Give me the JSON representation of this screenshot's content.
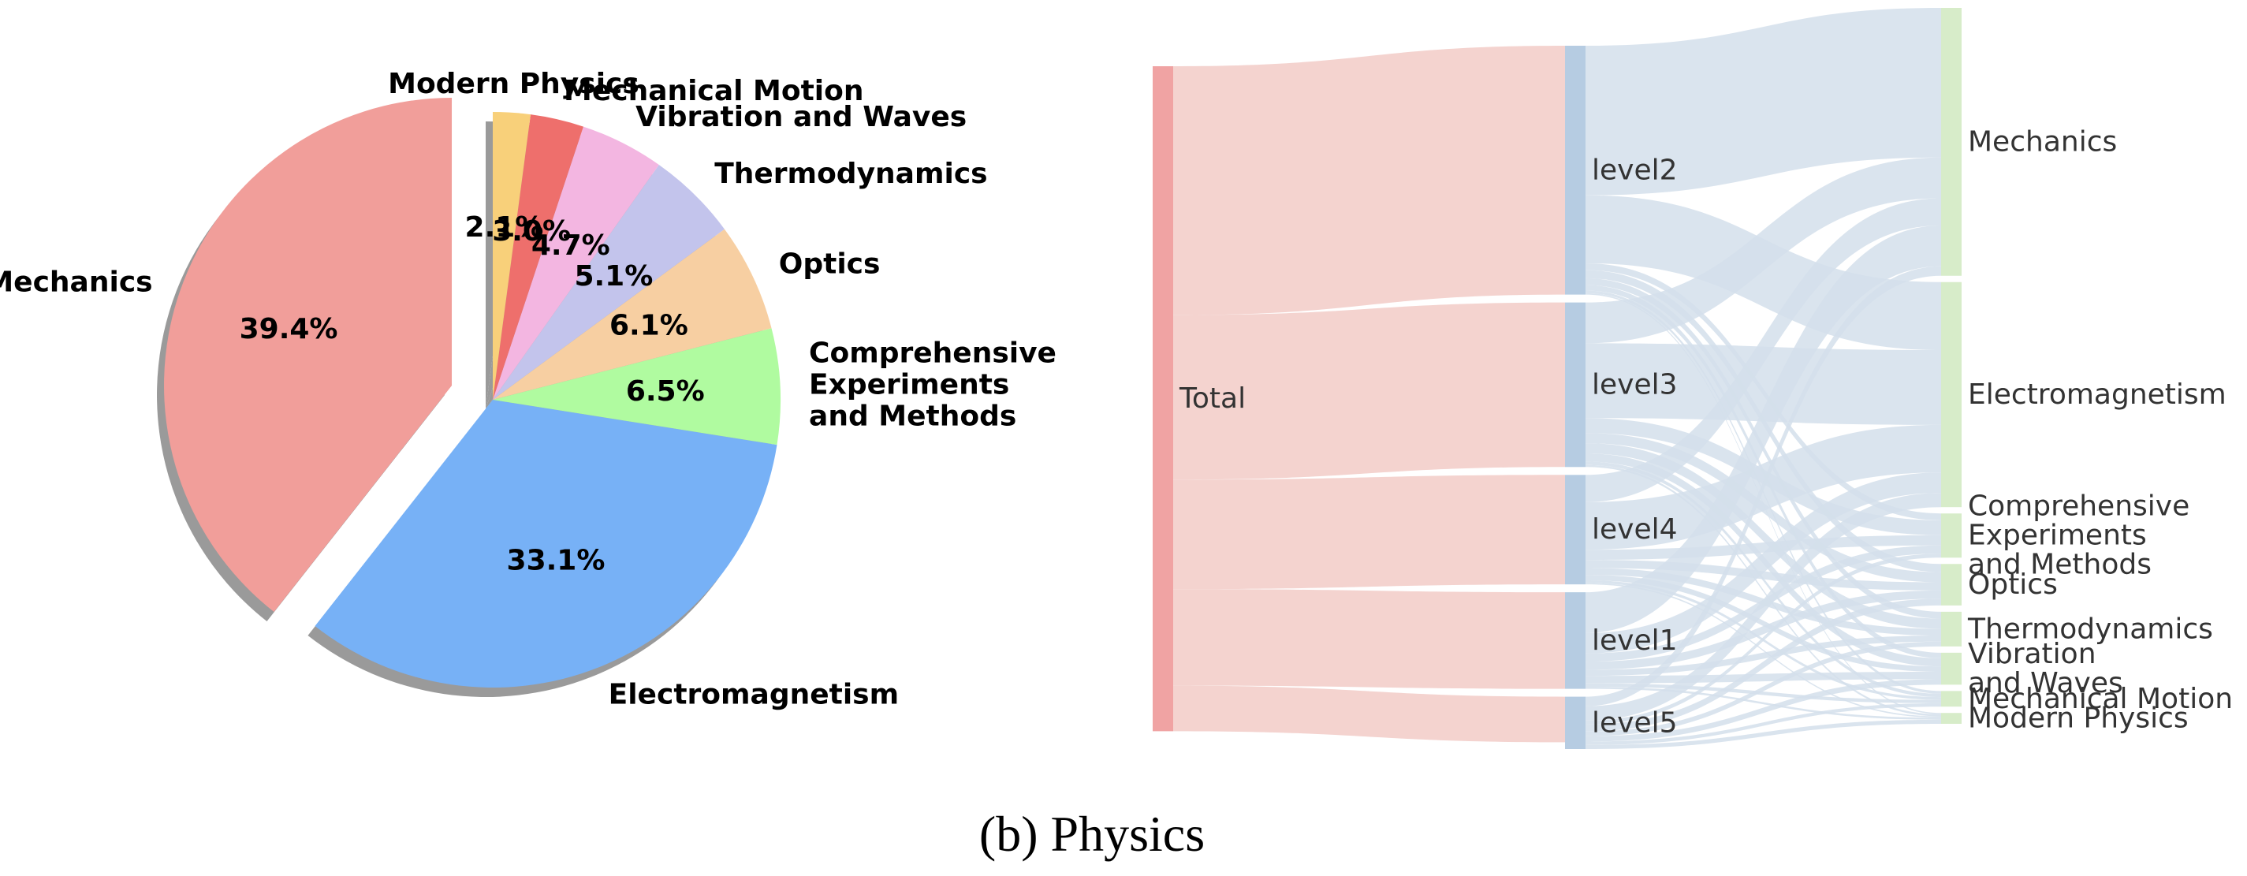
{
  "caption": "(b) Physics",
  "colors": {
    "total_node": "#f0a3a3",
    "total_link": "#f4d3cf",
    "level_node": "#b6cce2",
    "level_link": "#d3dfeb",
    "category_node": "#d7ecc9",
    "shadow": "#9a9a9a"
  },
  "chart_data": [
    {
      "type": "pie",
      "title": "",
      "start_angle_deg": 90,
      "direction": "counterclockwise",
      "shadow": true,
      "slices": [
        {
          "label": "Mechanics",
          "value": 39.4,
          "pct_label": "39.4%",
          "color": "#f19e9a",
          "explode": true
        },
        {
          "label": "Electromagnetism",
          "value": 33.1,
          "pct_label": "33.1%",
          "color": "#77b1f6",
          "explode": false
        },
        {
          "label": "Comprehensive\nExperiments\nand Methods",
          "value": 6.5,
          "pct_label": "6.5%",
          "color": "#b0fba0",
          "explode": false
        },
        {
          "label": "Optics",
          "value": 6.1,
          "pct_label": "6.1%",
          "color": "#f7cfa2",
          "explode": false
        },
        {
          "label": "Thermodynamics",
          "value": 5.1,
          "pct_label": "5.1%",
          "color": "#c3c4ec",
          "explode": false
        },
        {
          "label": "Vibration and Waves",
          "value": 4.7,
          "pct_label": "4.7%",
          "color": "#f3b6e1",
          "explode": false
        },
        {
          "label": "Mechanical Motion",
          "value": 3.0,
          "pct_label": "3.0%",
          "color": "#ee6f6c",
          "explode": false
        },
        {
          "label": "Modern Physics",
          "value": 2.1,
          "pct_label": "2.1%",
          "color": "#f8d07a",
          "explode": false
        }
      ]
    },
    {
      "type": "sankey",
      "title": "",
      "nodes": [
        {
          "id": "total",
          "label": "Total",
          "column": 0
        },
        {
          "id": "level2",
          "label": "level2",
          "column": 1
        },
        {
          "id": "level3",
          "label": "level3",
          "column": 1
        },
        {
          "id": "level4",
          "label": "level4",
          "column": 1
        },
        {
          "id": "level1",
          "label": "level1",
          "column": 1
        },
        {
          "id": "level5",
          "label": "level5",
          "column": 1
        },
        {
          "id": "mech",
          "label": "Mechanics",
          "column": 2
        },
        {
          "id": "em",
          "label": "Electromagnetism",
          "column": 2
        },
        {
          "id": "comp",
          "label": "Comprehensive\nExperiments\nand Methods",
          "column": 2
        },
        {
          "id": "opt",
          "label": "Optics",
          "column": 2
        },
        {
          "id": "thermo",
          "label": "Thermodynamics",
          "column": 2
        },
        {
          "id": "vib",
          "label": "Vibration\nand Waves",
          "column": 2
        },
        {
          "id": "mm",
          "label": "Mechanical Motion",
          "column": 2
        },
        {
          "id": "mp",
          "label": "Modern Physics",
          "column": 2
        }
      ],
      "links": [
        {
          "source": "total",
          "target": "level2",
          "value": 36.6
        },
        {
          "source": "total",
          "target": "level3",
          "value": 24.2
        },
        {
          "source": "total",
          "target": "level4",
          "value": 16.1
        },
        {
          "source": "total",
          "target": "level1",
          "value": 14.2
        },
        {
          "source": "total",
          "target": "level5",
          "value": 6.7
        },
        {
          "source": "level2",
          "target": "mech",
          "value": 22.0
        },
        {
          "source": "level2",
          "target": "em",
          "value": 10.0
        },
        {
          "source": "level2",
          "target": "comp",
          "value": 1.0
        },
        {
          "source": "level2",
          "target": "opt",
          "value": 1.2
        },
        {
          "source": "level2",
          "target": "thermo",
          "value": 1.0
        },
        {
          "source": "level2",
          "target": "vib",
          "value": 0.8
        },
        {
          "source": "level2",
          "target": "mm",
          "value": 0.4
        },
        {
          "source": "level2",
          "target": "mp",
          "value": 0.2
        },
        {
          "source": "level3",
          "target": "mech",
          "value": 6.0
        },
        {
          "source": "level3",
          "target": "em",
          "value": 11.0
        },
        {
          "source": "level3",
          "target": "comp",
          "value": 2.2
        },
        {
          "source": "level3",
          "target": "opt",
          "value": 1.5
        },
        {
          "source": "level3",
          "target": "thermo",
          "value": 1.5
        },
        {
          "source": "level3",
          "target": "vib",
          "value": 1.2
        },
        {
          "source": "level3",
          "target": "mm",
          "value": 0.5
        },
        {
          "source": "level3",
          "target": "mp",
          "value": 0.3
        },
        {
          "source": "level4",
          "target": "mech",
          "value": 4.0
        },
        {
          "source": "level4",
          "target": "em",
          "value": 7.0
        },
        {
          "source": "level4",
          "target": "comp",
          "value": 1.5
        },
        {
          "source": "level4",
          "target": "opt",
          "value": 1.2
        },
        {
          "source": "level4",
          "target": "thermo",
          "value": 1.0
        },
        {
          "source": "level4",
          "target": "vib",
          "value": 0.8
        },
        {
          "source": "level4",
          "target": "mm",
          "value": 0.4
        },
        {
          "source": "level4",
          "target": "mp",
          "value": 0.2
        },
        {
          "source": "level1",
          "target": "mech",
          "value": 6.0
        },
        {
          "source": "level1",
          "target": "em",
          "value": 3.0
        },
        {
          "source": "level1",
          "target": "comp",
          "value": 1.2
        },
        {
          "source": "level1",
          "target": "opt",
          "value": 1.2
        },
        {
          "source": "level1",
          "target": "thermo",
          "value": 0.9
        },
        {
          "source": "level1",
          "target": "vib",
          "value": 1.1
        },
        {
          "source": "level1",
          "target": "mm",
          "value": 0.5
        },
        {
          "source": "level1",
          "target": "mp",
          "value": 0.3
        },
        {
          "source": "level5",
          "target": "mech",
          "value": 1.4
        },
        {
          "source": "level5",
          "target": "em",
          "value": 2.1
        },
        {
          "source": "level5",
          "target": "comp",
          "value": 0.6
        },
        {
          "source": "level5",
          "target": "opt",
          "value": 1.0
        },
        {
          "source": "level5",
          "target": "thermo",
          "value": 0.7
        },
        {
          "source": "level5",
          "target": "vib",
          "value": 0.8
        },
        {
          "source": "level5",
          "target": "mm",
          "value": 0.5
        },
        {
          "source": "level5",
          "target": "mp",
          "value": 0.6
        }
      ]
    }
  ]
}
